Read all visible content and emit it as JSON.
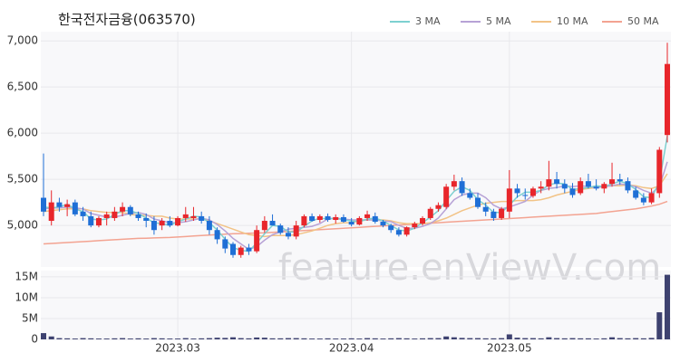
{
  "chart_data": {
    "type": "candlestick",
    "title": "한국전자금융(063570)",
    "watermark": "feature.enViewV.com",
    "categories": [
      null,
      null,
      null,
      null,
      null,
      null,
      null,
      null,
      null,
      null,
      null,
      null,
      null,
      null,
      null,
      null,
      null,
      "2023.03",
      null,
      null,
      null,
      null,
      null,
      null,
      null,
      null,
      null,
      null,
      null,
      null,
      null,
      null,
      null,
      null,
      null,
      null,
      null,
      null,
      null,
      "2023.04",
      null,
      null,
      null,
      null,
      null,
      null,
      null,
      null,
      null,
      null,
      null,
      null,
      null,
      null,
      null,
      null,
      null,
      null,
      null,
      "2023.05",
      null,
      null,
      null,
      null,
      null,
      null,
      null,
      null,
      null,
      null,
      null,
      null,
      null,
      null,
      null,
      null,
      null,
      null,
      null,
      null
    ],
    "up_color": "#e8262b",
    "down_color": "#1f6fd6",
    "open": [
      5300,
      5050,
      5250,
      5200,
      5250,
      5150,
      5100,
      5000,
      5080,
      5080,
      5150,
      5200,
      5120,
      5080,
      5050,
      5000,
      5050,
      5000,
      5080,
      5080,
      5100,
      5050,
      4950,
      4850,
      4800,
      4680,
      4760,
      4720,
      4950,
      5050,
      5000,
      4920,
      4880,
      5000,
      5100,
      5060,
      5100,
      5060,
      5090,
      5040,
      5010,
      5080,
      5100,
      5040,
      5000,
      4950,
      4900,
      4980,
      5020,
      5080,
      5180,
      5200,
      5420,
      5480,
      5350,
      5300,
      5200,
      5150,
      5080,
      5150,
      5400,
      5330,
      5320,
      5400,
      5420,
      5500,
      5450,
      5400,
      5350,
      5480,
      5420,
      5400,
      5450,
      5500,
      5480,
      5380,
      5300,
      5250,
      5350,
      5980
    ],
    "high": [
      5780,
      5380,
      5300,
      5280,
      5280,
      5200,
      5150,
      5100,
      5150,
      5200,
      5250,
      5220,
      5150,
      5130,
      5100,
      5080,
      5100,
      5100,
      5200,
      5200,
      5150,
      5100,
      4980,
      4880,
      4820,
      4780,
      4800,
      5000,
      5100,
      5120,
      5020,
      4980,
      5050,
      5120,
      5130,
      5120,
      5130,
      5120,
      5120,
      5080,
      5100,
      5160,
      5140,
      5060,
      5020,
      4980,
      4990,
      5040,
      5100,
      5200,
      5250,
      5450,
      5550,
      5520,
      5400,
      5350,
      5250,
      5180,
      5200,
      5600,
      5450,
      5400,
      5420,
      5480,
      5700,
      5580,
      5500,
      5460,
      5520,
      5560,
      5500,
      5470,
      5680,
      5560,
      5520,
      5420,
      5350,
      5400,
      5850,
      6980
    ],
    "low": [
      5100,
      5000,
      5150,
      5100,
      5100,
      5050,
      4980,
      4980,
      5000,
      5050,
      5100,
      5100,
      5050,
      4980,
      4900,
      4950,
      4980,
      4990,
      5040,
      5050,
      5020,
      4900,
      4800,
      4700,
      4650,
      4650,
      4680,
      4700,
      4920,
      5000,
      4900,
      4850,
      4850,
      4980,
      5040,
      5030,
      5040,
      5020,
      5030,
      4990,
      5000,
      5050,
      5020,
      4980,
      4920,
      4880,
      4880,
      4960,
      5000,
      5060,
      5150,
      5180,
      5380,
      5320,
      5280,
      5180,
      5100,
      5050,
      5060,
      5080,
      5300,
      5280,
      5300,
      5350,
      5380,
      5400,
      5350,
      5300,
      5330,
      5400,
      5380,
      5350,
      5420,
      5440,
      5350,
      5280,
      5220,
      5230,
      5300,
      5900
    ],
    "close": [
      5150,
      5250,
      5200,
      5230,
      5120,
      5100,
      5000,
      5080,
      5120,
      5150,
      5200,
      5120,
      5080,
      5050,
      4950,
      5050,
      5000,
      5080,
      5120,
      5100,
      5050,
      4950,
      4850,
      4750,
      4680,
      4760,
      4720,
      4950,
      5050,
      5000,
      4920,
      4880,
      5000,
      5100,
      5050,
      5100,
      5060,
      5090,
      5040,
      5010,
      5080,
      5120,
      5040,
      5000,
      4950,
      4900,
      4980,
      5020,
      5080,
      5180,
      5220,
      5420,
      5480,
      5350,
      5300,
      5200,
      5150,
      5080,
      5180,
      5400,
      5350,
      5320,
      5400,
      5420,
      5500,
      5450,
      5400,
      5330,
      5480,
      5420,
      5400,
      5450,
      5500,
      5480,
      5380,
      5300,
      5250,
      5350,
      5820,
      6750
    ],
    "series": [
      {
        "name": "3 MA",
        "color": "#7dd0d0",
        "values": [
          5200,
          5190,
          5200,
          5230,
          5180,
          5150,
          5070,
          5060,
          5070,
          5120,
          5160,
          5160,
          5130,
          5080,
          5030,
          5020,
          5000,
          5040,
          5070,
          5100,
          5090,
          5030,
          4950,
          4850,
          4760,
          4730,
          4720,
          4810,
          4910,
          5000,
          4990,
          4930,
          4930,
          4990,
          5050,
          5080,
          5070,
          5080,
          5060,
          5050,
          5040,
          5070,
          5080,
          5050,
          5000,
          4950,
          4940,
          4970,
          5030,
          5090,
          5160,
          5270,
          5370,
          5420,
          5380,
          5280,
          5220,
          5140,
          5140,
          5220,
          5310,
          5360,
          5360,
          5380,
          5440,
          5460,
          5450,
          5390,
          5400,
          5410,
          5430,
          5420,
          5450,
          5480,
          5450,
          5390,
          5310,
          5300,
          5470,
          5970
        ]
      },
      {
        "name": "5 MA",
        "color": "#b7a2d6",
        "values": [
          5180,
          5190,
          5190,
          5200,
          5190,
          5180,
          5130,
          5110,
          5090,
          5090,
          5110,
          5130,
          5140,
          5120,
          5070,
          5050,
          5030,
          5030,
          5040,
          5060,
          5080,
          5060,
          5010,
          4940,
          4860,
          4800,
          4740,
          4770,
          4840,
          4900,
          4930,
          4960,
          4970,
          4980,
          4990,
          5020,
          5070,
          5080,
          5070,
          5060,
          5060,
          5060,
          5060,
          5050,
          5040,
          5000,
          4970,
          4970,
          4990,
          5020,
          5080,
          5180,
          5280,
          5330,
          5350,
          5350,
          5300,
          5220,
          5180,
          5200,
          5230,
          5260,
          5330,
          5380,
          5400,
          5410,
          5430,
          5420,
          5430,
          5420,
          5410,
          5420,
          5430,
          5450,
          5440,
          5420,
          5380,
          5350,
          5420,
          5690
        ]
      },
      {
        "name": "10 MA",
        "color": "#f2c386",
        "values": [
          5150,
          5160,
          5170,
          5180,
          5180,
          5180,
          5160,
          5150,
          5140,
          5140,
          5140,
          5120,
          5110,
          5110,
          5100,
          5100,
          5080,
          5070,
          5070,
          5070,
          5070,
          5050,
          5020,
          4990,
          4960,
          4930,
          4900,
          4890,
          4880,
          4890,
          4890,
          4890,
          4900,
          4920,
          4940,
          4970,
          5000,
          5020,
          5030,
          5030,
          5050,
          5060,
          5060,
          5060,
          5050,
          5030,
          5020,
          5020,
          5020,
          5030,
          5050,
          5080,
          5120,
          5160,
          5190,
          5220,
          5240,
          5250,
          5260,
          5260,
          5270,
          5270,
          5270,
          5280,
          5300,
          5330,
          5350,
          5370,
          5390,
          5400,
          5410,
          5420,
          5430,
          5430,
          5440,
          5430,
          5410,
          5400,
          5430,
          5560
        ]
      },
      {
        "name": "50 MA",
        "color": "#f3a391",
        "values": [
          4800,
          4805,
          4810,
          4815,
          4820,
          4825,
          4830,
          4835,
          4840,
          4845,
          4850,
          4855,
          4860,
          4862,
          4865,
          4868,
          4870,
          4875,
          4880,
          4885,
          4890,
          4895,
          4900,
          4905,
          4910,
          4912,
          4915,
          4918,
          4920,
          4925,
          4930,
          4935,
          4940,
          4945,
          4950,
          4955,
          4960,
          4965,
          4970,
          4975,
          4980,
          4985,
          4990,
          4995,
          5000,
          5005,
          5010,
          5015,
          5020,
          5025,
          5030,
          5035,
          5040,
          5045,
          5050,
          5055,
          5060,
          5065,
          5070,
          5075,
          5080,
          5085,
          5090,
          5095,
          5100,
          5105,
          5110,
          5115,
          5120,
          5125,
          5130,
          5140,
          5150,
          5160,
          5170,
          5180,
          5195,
          5210,
          5230,
          5260
        ]
      }
    ],
    "ylim": [
      4550,
      7100
    ],
    "yticks": [
      {
        "value": 5000,
        "label": "5,000"
      },
      {
        "value": 5500,
        "label": "5,500"
      },
      {
        "value": 6000,
        "label": "6,000"
      },
      {
        "value": 6500,
        "label": "6,500"
      },
      {
        "value": 7000,
        "label": "7,000"
      }
    ],
    "grid": true,
    "volume": {
      "color": "#3e4270",
      "values": [
        1500000,
        700000,
        300000,
        250000,
        200000,
        300000,
        250000,
        200000,
        200000,
        250000,
        300000,
        200000,
        250000,
        200000,
        300000,
        250000,
        200000,
        200000,
        300000,
        200000,
        250000,
        300000,
        400000,
        350000,
        500000,
        300000,
        250000,
        450000,
        400000,
        250000,
        250000,
        300000,
        300000,
        250000,
        200000,
        200000,
        250000,
        200000,
        200000,
        250000,
        200000,
        300000,
        250000,
        200000,
        250000,
        300000,
        250000,
        200000,
        250000,
        300000,
        300000,
        700000,
        500000,
        350000,
        300000,
        300000,
        250000,
        250000,
        300000,
        1200000,
        400000,
        300000,
        300000,
        250000,
        500000,
        300000,
        250000,
        300000,
        250000,
        250000,
        200000,
        250000,
        500000,
        300000,
        250000,
        300000,
        250000,
        350000,
        6500000,
        15500000
      ],
      "ylim": [
        0,
        16500000
      ],
      "yticks": [
        0,
        {
          "value": 5000000,
          "label": "5M"
        },
        {
          "value": 10000000,
          "label": "10M"
        },
        {
          "value": 15000000,
          "label": "15M"
        }
      ]
    }
  }
}
